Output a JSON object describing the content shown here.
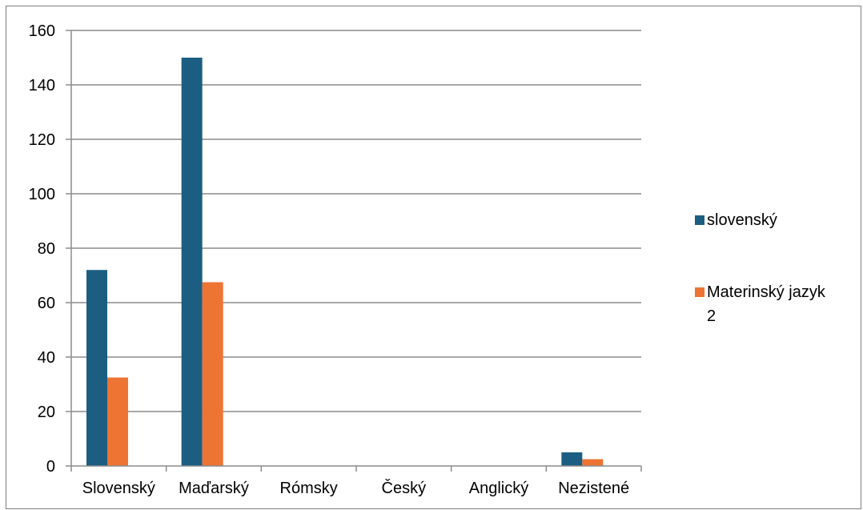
{
  "chart_data": {
    "type": "bar",
    "title": "",
    "xlabel": "",
    "ylabel": "",
    "categories": [
      "Slovenský",
      "Maďarský",
      "Rómsky",
      "Český",
      "Anglický",
      "Nezistené"
    ],
    "series": [
      {
        "name": "slovenský",
        "color": "#1b5e82",
        "values": [
          72,
          150,
          0,
          0,
          0,
          5
        ]
      },
      {
        "name": "Materinský jazyk 2",
        "color": "#ed7433",
        "values": [
          32.5,
          67.5,
          0,
          0,
          0,
          2.5
        ]
      }
    ],
    "ylim": [
      0,
      160
    ],
    "yticks": [
      "0",
      "20",
      "40",
      "60",
      "80",
      "100",
      "120",
      "140",
      "160"
    ],
    "grid": true,
    "legend_position": "right",
    "legend_lines": [
      [
        "slovenský"
      ],
      [
        "Materinský jazyk",
        "2"
      ]
    ]
  }
}
